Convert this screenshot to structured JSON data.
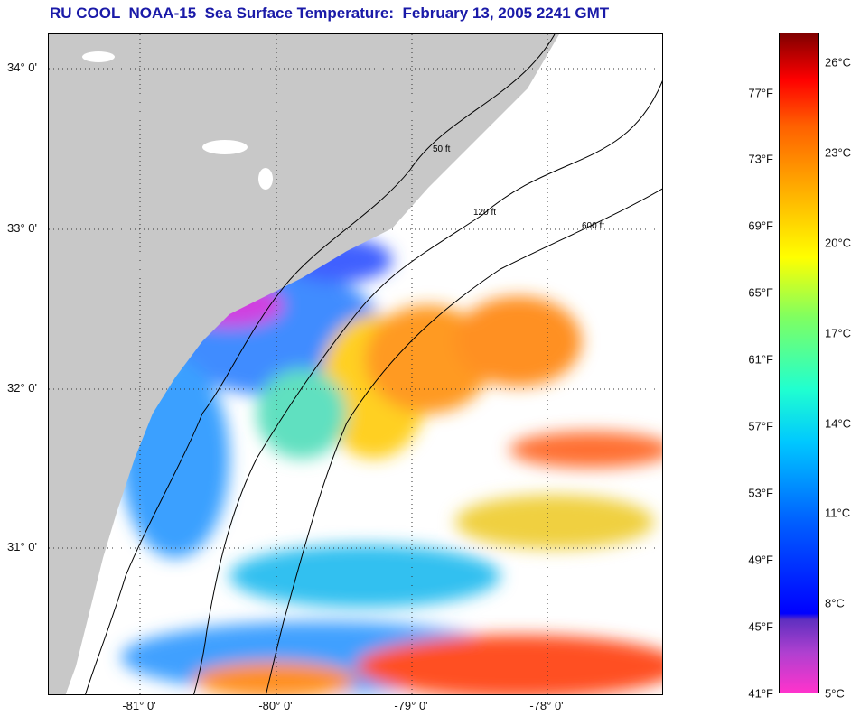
{
  "title": "RU COOL  NOAA-15  Sea Surface Temperature:  February 13, 2005 2241 GMT",
  "map": {
    "lat_labels": [
      "34° 0'",
      "33° 0'",
      "32° 0'",
      "31° 0'"
    ],
    "lon_labels": [
      "-81° 0'",
      "-80° 0'",
      "-79° 0'",
      "-78° 0'"
    ],
    "contour_labels": [
      "50 ft",
      "120 ft",
      "600 ft"
    ],
    "land_color": "#c8c8c8"
  },
  "colorbar": {
    "min_f": 41,
    "max_f": 80.6,
    "f_ticks": [
      {
        "v": 77,
        "label": "77°F"
      },
      {
        "v": 73,
        "label": "73°F"
      },
      {
        "v": 69,
        "label": "69°F"
      },
      {
        "v": 65,
        "label": "65°F"
      },
      {
        "v": 61,
        "label": "61°F"
      },
      {
        "v": 57,
        "label": "57°F"
      },
      {
        "v": 53,
        "label": "53°F"
      },
      {
        "v": 49,
        "label": "49°F"
      },
      {
        "v": 45,
        "label": "45°F"
      },
      {
        "v": 41,
        "label": "41°F"
      }
    ],
    "c_ticks": [
      {
        "v": 26,
        "label": "26°C"
      },
      {
        "v": 23,
        "label": "23°C"
      },
      {
        "v": 20,
        "label": "20°C"
      },
      {
        "v": 17,
        "label": "17°C"
      },
      {
        "v": 14,
        "label": "14°C"
      },
      {
        "v": 11,
        "label": "11°C"
      },
      {
        "v": 8,
        "label": "8°C"
      },
      {
        "v": 5,
        "label": "5°C"
      }
    ]
  }
}
